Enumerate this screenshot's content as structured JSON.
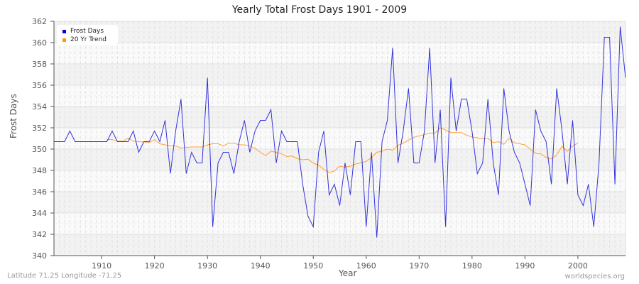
{
  "title": "Yearly Total Frost Days 1901 - 2009",
  "footer": {
    "location": "Latitude 71.25 Longitude -71.25",
    "source": "worldspecies.org"
  },
  "legend": {
    "items": [
      {
        "label": "Frost Days",
        "color": "#0000ff"
      },
      {
        "label": "20 Yr Trend",
        "color": "#ff9900"
      }
    ]
  },
  "colors": {
    "series": "#3333dd",
    "trend": "#ffa033",
    "band_dark": "#f2f2f2",
    "band_light": "#fafafa",
    "axis": "#555555"
  },
  "chart_data": {
    "type": "line",
    "title": "Yearly Total Frost Days 1901 - 2009",
    "xlabel": "Year",
    "ylabel": "Frost Days",
    "xlim": [
      1901,
      2009
    ],
    "ylim": [
      340,
      362
    ],
    "x_ticks": [
      1910,
      1920,
      1930,
      1940,
      1950,
      1960,
      1970,
      1980,
      1990,
      2000
    ],
    "y_ticks": [
      340,
      342,
      344,
      346,
      348,
      350,
      352,
      354,
      356,
      358,
      360,
      362
    ],
    "grid": true,
    "legend_position": "top-left",
    "series": [
      {
        "name": "Frost Days",
        "x_start": 1901,
        "values": [
          350.7,
          350.7,
          350.7,
          351.7,
          350.7,
          350.7,
          350.7,
          350.7,
          350.7,
          350.7,
          350.7,
          351.7,
          350.7,
          350.7,
          350.7,
          351.7,
          349.7,
          350.7,
          350.7,
          351.7,
          350.7,
          352.7,
          347.7,
          351.7,
          354.7,
          347.7,
          349.7,
          348.7,
          348.7,
          356.7,
          342.7,
          348.7,
          349.7,
          349.7,
          347.7,
          350.7,
          352.7,
          349.7,
          351.7,
          352.7,
          352.7,
          353.7,
          348.7,
          351.7,
          350.7,
          350.7,
          350.7,
          346.7,
          343.7,
          342.7,
          349.7,
          351.7,
          345.7,
          346.7,
          344.7,
          348.7,
          345.7,
          350.7,
          350.7,
          342.7,
          349.7,
          341.7,
          350.7,
          352.7,
          359.5,
          348.7,
          351.7,
          355.7,
          348.7,
          348.7,
          351.7,
          359.5,
          348.7,
          353.7,
          342.7,
          356.7,
          351.7,
          354.7,
          354.7,
          351.7,
          347.7,
          348.7,
          354.7,
          348.7,
          345.7,
          355.7,
          351.7,
          349.7,
          348.7,
          346.7,
          344.7,
          353.7,
          351.7,
          350.7,
          346.7,
          355.7,
          351.7,
          346.7,
          352.7,
          345.7,
          344.7,
          346.7,
          342.7,
          348.7,
          360.5,
          360.5,
          346.7,
          361.5,
          356.7
        ]
      },
      {
        "name": "20 Yr Trend",
        "x_start": 1911,
        "values": [
          350.9,
          350.9,
          350.75,
          350.75,
          351.0,
          350.75,
          350.7,
          350.67,
          350.6,
          350.9,
          350.5,
          350.4,
          350.3,
          350.3,
          350.1,
          350.15,
          350.2,
          350.2,
          350.2,
          350.4,
          350.5,
          350.5,
          350.3,
          350.55,
          350.55,
          350.4,
          350.4,
          350.3,
          350.05,
          349.7,
          349.4,
          349.8,
          349.7,
          349.55,
          349.3,
          349.35,
          349.1,
          349.0,
          349.05,
          348.67,
          348.5,
          348.1,
          347.8,
          347.95,
          348.4,
          348.3,
          348.4,
          348.6,
          348.7,
          348.85,
          349.2,
          349.7,
          349.8,
          350.0,
          349.9,
          350.35,
          350.55,
          350.85,
          351.1,
          351.25,
          351.35,
          351.5,
          351.5,
          352.0,
          351.8,
          351.55,
          351.55,
          351.55,
          351.3,
          351.15,
          351.05,
          350.95,
          351.0,
          350.6,
          350.7,
          350.45,
          351.0,
          350.6,
          350.5,
          350.4,
          350.0,
          349.6,
          349.55,
          349.2,
          349.07,
          349.45,
          350.27,
          349.8,
          350.3,
          350.55
        ]
      }
    ]
  }
}
